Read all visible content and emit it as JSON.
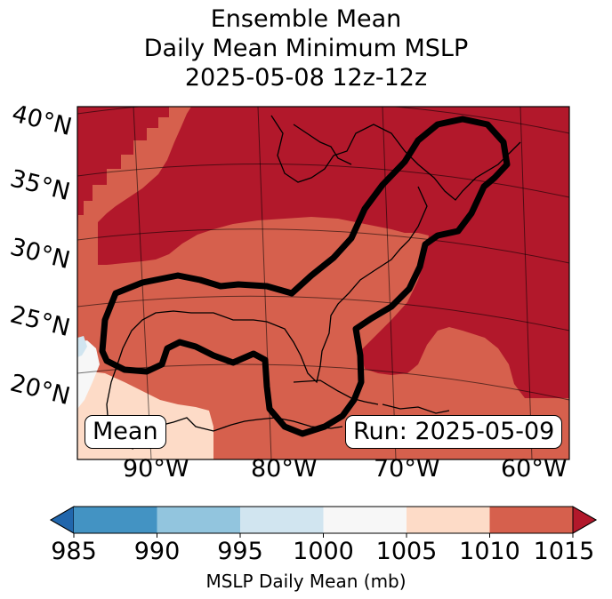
{
  "title": {
    "line1": "Ensemble Mean",
    "line2": "Daily Mean Minimum MSLP",
    "line3": "2025-05-08 12z-12z"
  },
  "map": {
    "lat_labels": [
      "40°N",
      "35°N",
      "30°N",
      "25°N",
      "20°N"
    ],
    "lon_labels": [
      "90°W",
      "80°W",
      "70°W",
      "60°W"
    ],
    "mean_label": "Mean",
    "run_label": "Run: 2025-05-09",
    "colors": {
      "lt985": "#2166ac",
      "985_990": "#4393c3",
      "990_995": "#92c5de",
      "995_1000": "#d1e5f0",
      "1000_1005": "#f7f7f7",
      "1005_1010": "#fddbc7",
      "1010_1015": "#d6604d",
      "gt1015": "#b2182b"
    }
  },
  "colorbar": {
    "ticks": [
      "985",
      "990",
      "995",
      "1000",
      "1005",
      "1010",
      "1015"
    ],
    "label": "MSLP Daily Mean (mb)"
  }
}
